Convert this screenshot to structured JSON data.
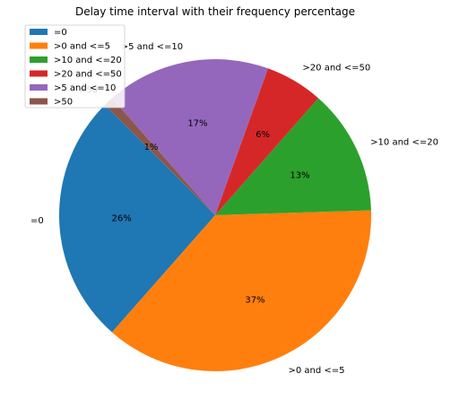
{
  "chart_data": {
    "type": "pie",
    "title": "Delay time interval with their frequency percentage",
    "legend_position": "top-left",
    "slices": [
      {
        "label": "=0",
        "percent": 26,
        "pct_label": "26%",
        "color": "#1f77b4"
      },
      {
        "label": ">0 and <=5",
        "percent": 37,
        "pct_label": "37%",
        "color": "#ff7f0e"
      },
      {
        "label": ">10 and <=20",
        "percent": 13,
        "pct_label": "13%",
        "color": "#2ca02c"
      },
      {
        "label": ">20 and <=50",
        "percent": 6,
        "pct_label": "6%",
        "color": "#d62728"
      },
      {
        "label": ">5 and <=10",
        "percent": 17,
        "pct_label": "17%",
        "color": "#9467bd"
      },
      {
        "label": ">50",
        "percent": 1,
        "pct_label": "1%",
        "color": "#8c564b"
      }
    ]
  }
}
